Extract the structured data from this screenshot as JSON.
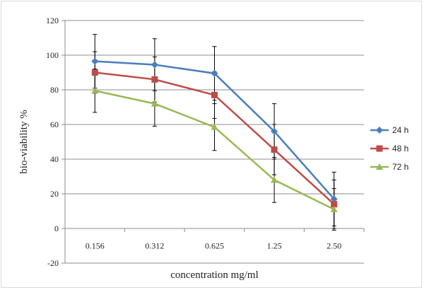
{
  "chart_data": {
    "type": "line",
    "title": "",
    "xlabel": "concentration mg/ml",
    "ylabel": "bio-viability %",
    "categories": [
      "0.156",
      "0.312",
      "0.625",
      "1.25",
      "2.50"
    ],
    "ylim": [
      -20,
      120
    ],
    "yticks": [
      -20,
      0,
      20,
      40,
      60,
      80,
      100,
      120
    ],
    "grid": true,
    "legend_position": "right",
    "error_bars": true,
    "series": [
      {
        "name": "24 h",
        "color": "#4a7ebb",
        "marker": "diamond",
        "values": [
          96.5,
          94.5,
          89.5,
          56.0,
          17.0
        ],
        "errors": [
          15.5,
          15.0,
          15.5,
          16.0,
          15.5
        ]
      },
      {
        "name": "48 h",
        "color": "#be4b48",
        "marker": "square",
        "values": [
          90.0,
          86.0,
          77.0,
          45.5,
          14.0
        ],
        "errors": [
          12.0,
          13.0,
          13.5,
          14.5,
          14.0
        ]
      },
      {
        "name": "72 h",
        "color": "#98b954",
        "marker": "triangle",
        "values": [
          79.5,
          72.0,
          58.5,
          28.0,
          11.0
        ],
        "errors": [
          12.5,
          13.0,
          13.5,
          13.0,
          12.0
        ]
      }
    ]
  }
}
